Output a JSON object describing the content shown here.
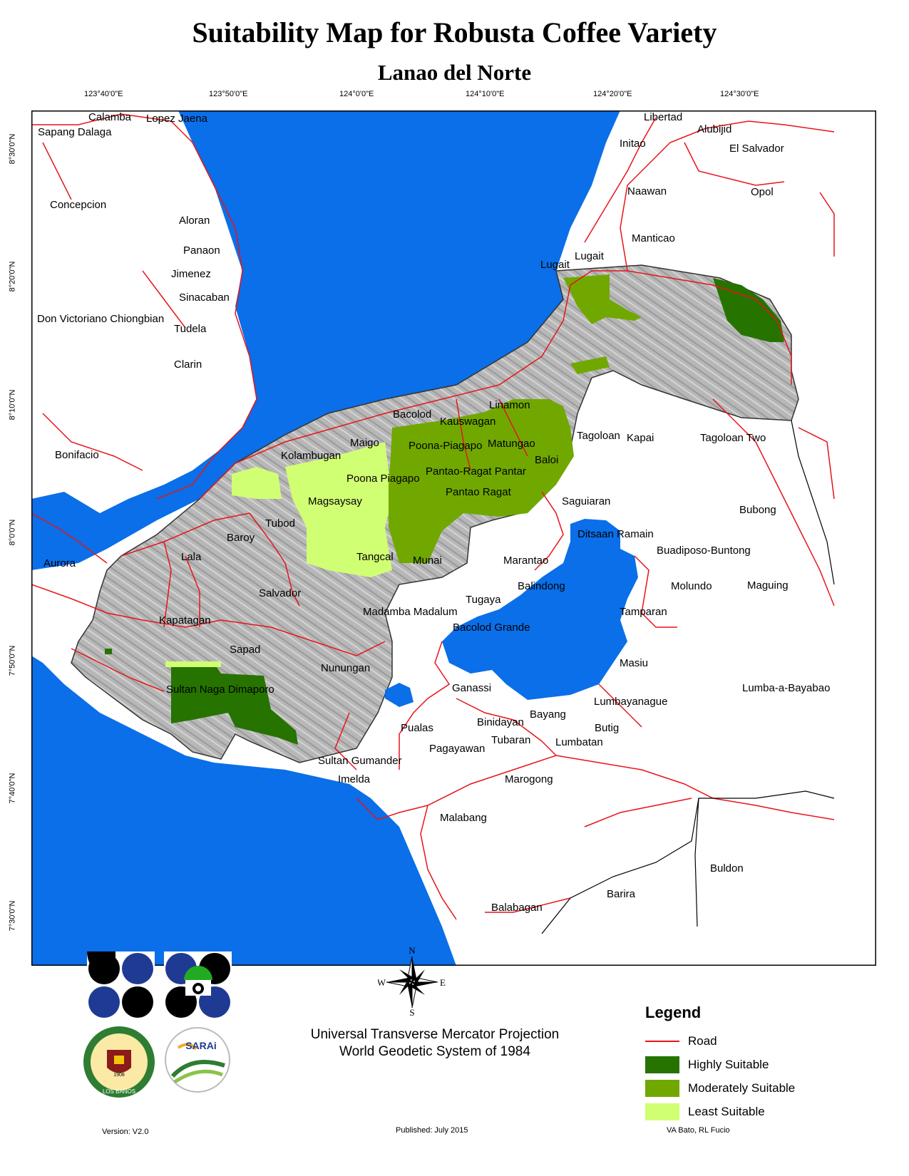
{
  "title": "Suitability Map for Robusta Coffee Variety",
  "subtitle": "Lanao del Norte",
  "grid_labels": {
    "lon": [
      "123°40'0\"E",
      "123°50'0\"E",
      "124°0'0\"E",
      "124°10'0\"E",
      "124°20'0\"E",
      "124°30'0\"E"
    ],
    "lat": [
      "8°30'0\"N",
      "8°20'0\"N",
      "8°10'0\"N",
      "8°0'0\"N",
      "7°50'0\"N",
      "7°40'0\"N",
      "7°30'0\"N"
    ]
  },
  "places": [
    "Calamba",
    "Lopez Jaena",
    "Sapang Dalaga",
    "Concepcion",
    "Aloran",
    "Panaon",
    "Jimenez",
    "Sinacaban",
    "Don Victoriano Chiongbian",
    "Tudela",
    "Clarin",
    "Bonifacio",
    "Aurora",
    "Libertad",
    "Initao",
    "Alubijid",
    "El Salvador",
    "Naawan",
    "Opol",
    "Manticao",
    "Lugait",
    "Lugait",
    "Linamon",
    "Bacolod",
    "Kauswagan",
    "Maigo",
    "Poona-Piagapo",
    "Matungao",
    "Kolambugan",
    "Pantao-Ragat Pantar",
    "Baloi",
    "Poona Piagapo",
    "Pantao Ragat",
    "Tagoloan",
    "Kapai",
    "Tagoloan Two",
    "Magsaysay",
    "Saguiaran",
    "Bubong",
    "Tubod",
    "Baroy",
    "Ditsaan Ramain",
    "Buadiposo-Buntong",
    "Marantao",
    "Lala",
    "Tangcal",
    "Munai",
    "Molundo",
    "Maguing",
    "Balindong",
    "Salvador",
    "Tugaya",
    "Madamba Madalum",
    "Tamparan",
    "Kapatagan",
    "Bacolod Grande",
    "Sapad",
    "Masiu",
    "Nunungan",
    "Sultan Naga Dimaporo",
    "Ganassi",
    "Lumba-a-Bayabao",
    "Lumbayanague",
    "Bayang",
    "Binidayan",
    "Butig",
    "Pualas",
    "Tubaran",
    "Pagayawan",
    "Lumbatan",
    "Sultan Gumander",
    "Imelda",
    "Marogong",
    "Malabang",
    "Buldon",
    "Barira",
    "Balabagan"
  ],
  "compass": {
    "n": "N",
    "s": "S",
    "e": "E",
    "w": "W"
  },
  "legend": {
    "title": "Legend",
    "items": [
      {
        "label": "Road",
        "kind": "line",
        "color": "#e8141a"
      },
      {
        "label": "Highly Suitable",
        "kind": "fill",
        "color": "#267300"
      },
      {
        "label": "Moderately Suitable",
        "kind": "fill",
        "color": "#70a800"
      },
      {
        "label": "Least Suitable",
        "kind": "fill",
        "color": "#d1ff73"
      }
    ]
  },
  "projection": {
    "line1": "Universal Transverse Mercator Projection",
    "line2": "World Geodetic System of 1984"
  },
  "footer": {
    "version": "Version: V2.0",
    "published": "Published: July 2015",
    "authors": "VA Bato, RL Fucio"
  },
  "logos": {
    "upd": "UNIVERSITY OF THE PHILIPPINES",
    "upd_year": "1908",
    "upd_campus": "LOS BAÑOS",
    "sarai": "SARAi"
  },
  "colors": {
    "water": "#0a6fe8",
    "province": "#b5b5b5",
    "road": "#e8141a"
  }
}
